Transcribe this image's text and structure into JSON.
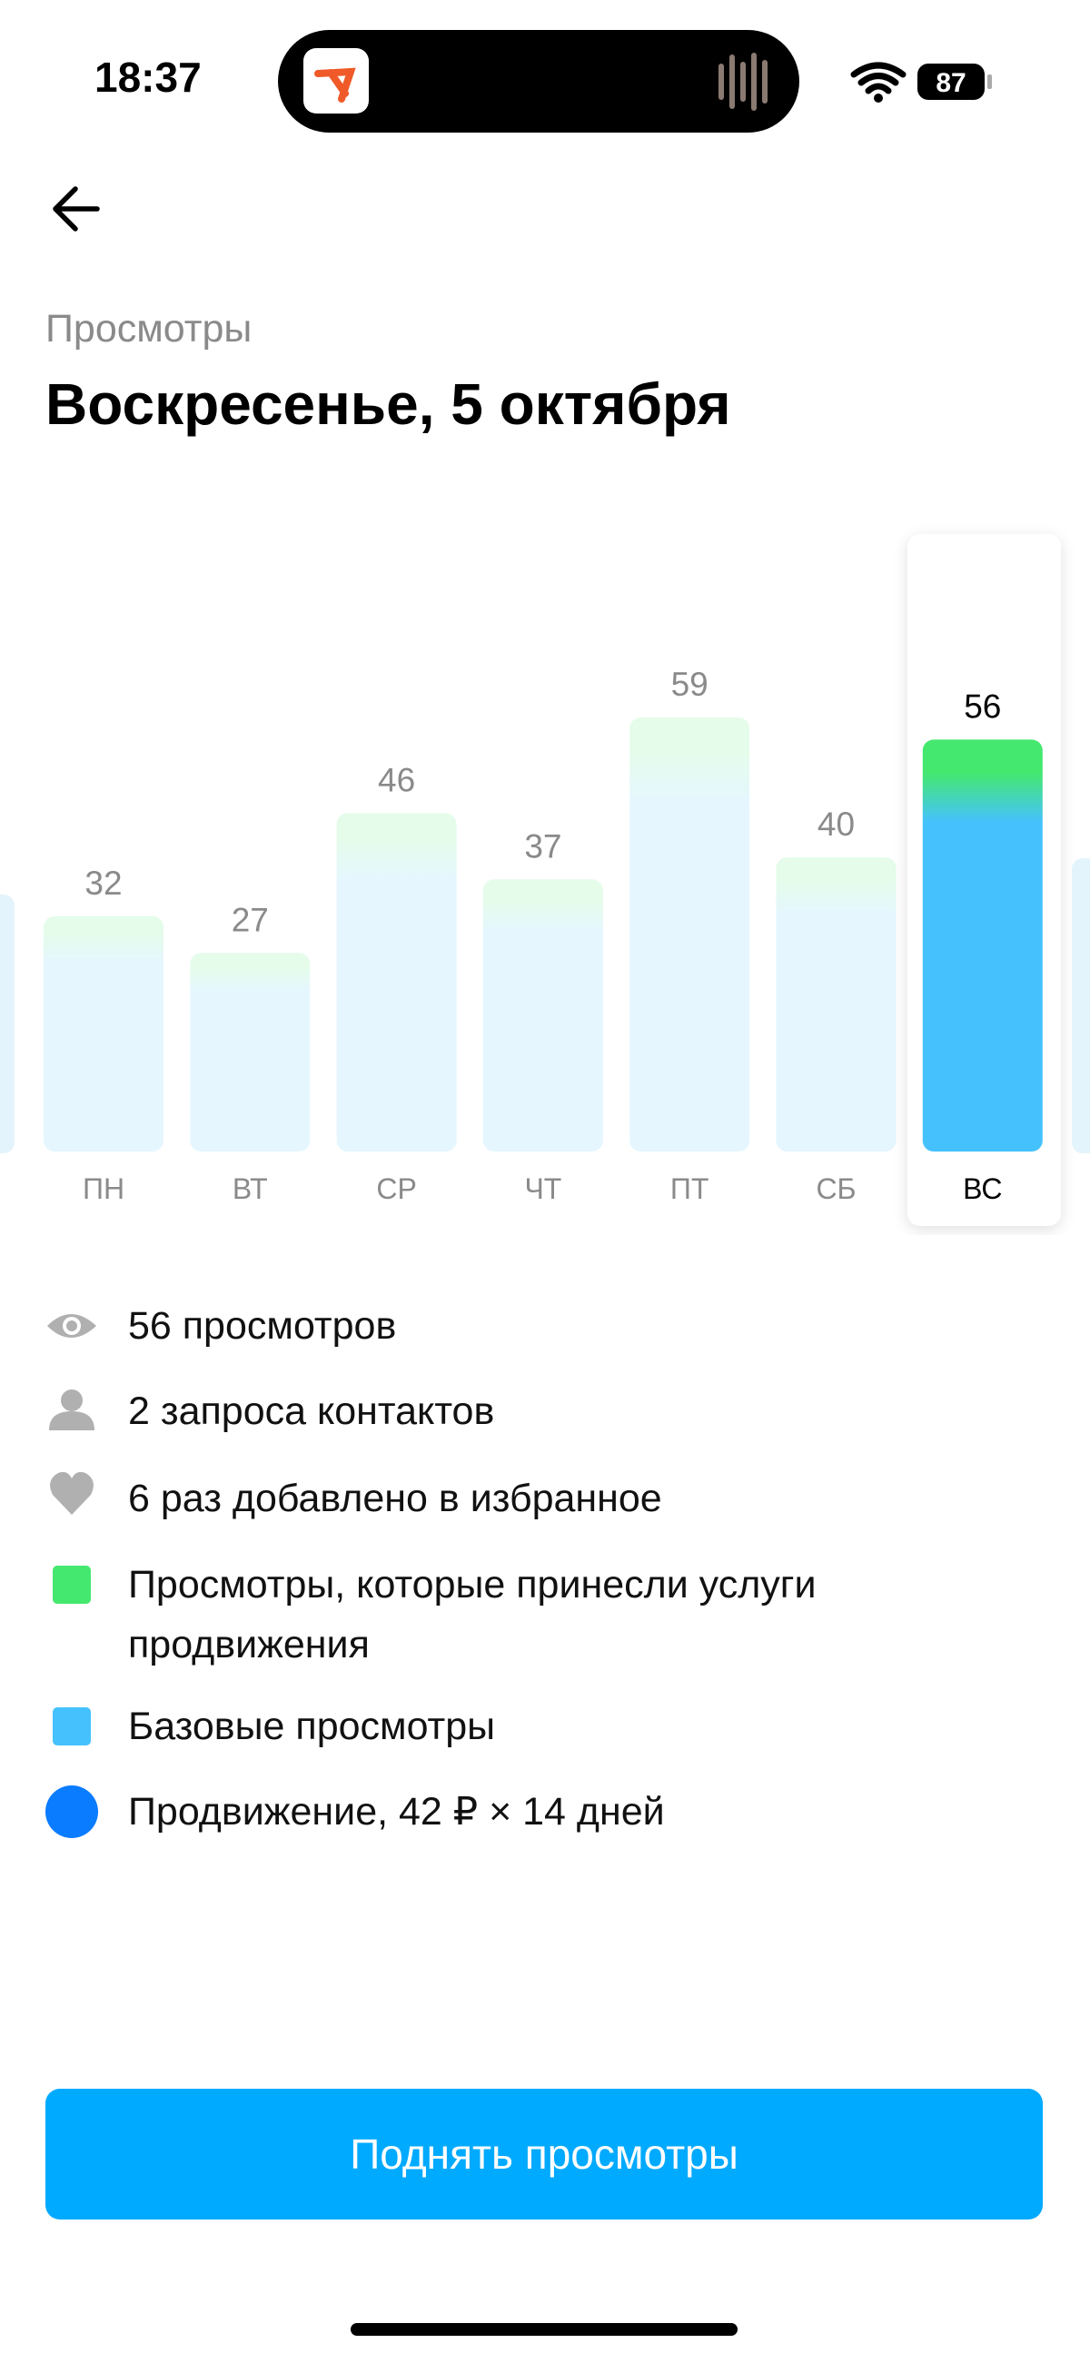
{
  "status_bar": {
    "time": "18:37",
    "battery": "87"
  },
  "header": {
    "subtitle": "Просмотры",
    "title": "Воскресенье, 5 октября"
  },
  "chart_data": {
    "type": "bar",
    "categories": [
      "ПН",
      "ВТ",
      "СР",
      "ЧТ",
      "ПТ",
      "СБ",
      "ВС"
    ],
    "values": [
      32,
      27,
      46,
      37,
      59,
      40,
      56
    ],
    "selected": 6,
    "colors": {
      "promoted": "#45e86f",
      "base": "#45c2fd"
    }
  },
  "legend": [
    "56 просмотров",
    "2 запроса контактов",
    "6 раз добавлено в избранное",
    "Просмотры, которые принесли услуги продвижения",
    "Базовые просмотры",
    "Продвижение, 42 ₽ × 14 дней"
  ],
  "button": "Поднять просмотры"
}
